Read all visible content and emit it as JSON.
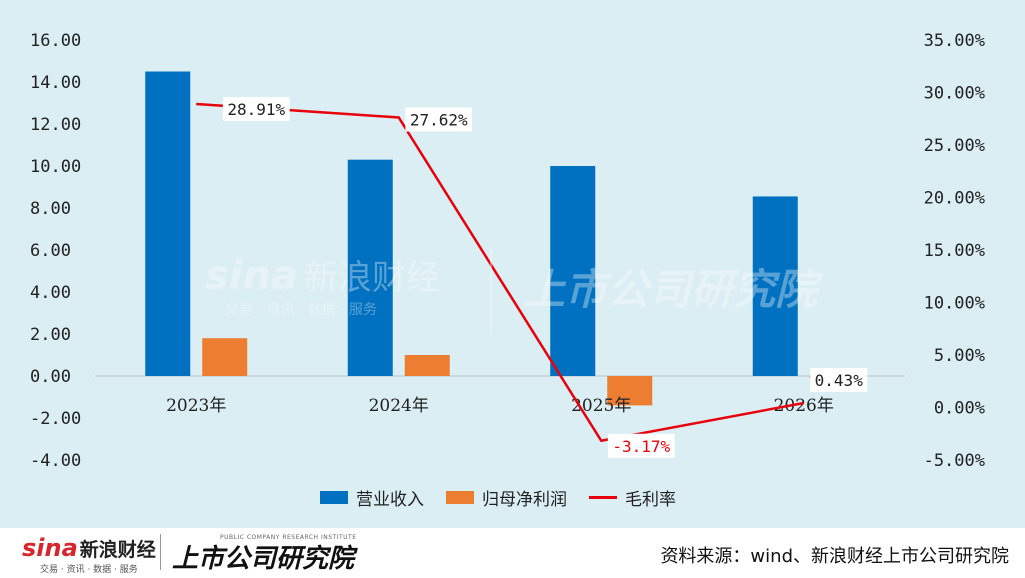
{
  "chart_data": {
    "type": "bar",
    "categories": [
      "2023年",
      "2024年",
      "2025年",
      "2026年"
    ],
    "series": [
      {
        "name": "营业收入",
        "type": "bar",
        "axis": "left",
        "color": "#0070c0",
        "values": [
          14.5,
          10.3,
          10.0,
          8.55
        ]
      },
      {
        "name": "归母净利润",
        "type": "bar",
        "axis": "left",
        "color": "#ed7d31",
        "values": [
          1.8,
          1.0,
          -1.4,
          -0.1
        ]
      },
      {
        "name": "毛利率",
        "type": "line",
        "axis": "right",
        "color": "#e8000b",
        "values": [
          28.91,
          27.62,
          -3.17,
          0.43
        ],
        "labels": [
          "28.91%",
          "27.62%",
          "-3.17%",
          "0.43%"
        ]
      }
    ],
    "y_left": {
      "min": -4,
      "max": 16,
      "step": 2,
      "tick_labels": [
        "-4.00",
        "-2.00",
        "0.00",
        "2.00",
        "4.00",
        "6.00",
        "8.00",
        "10.00",
        "12.00",
        "14.00",
        "16.00"
      ]
    },
    "y_right": {
      "min": -5,
      "max": 35,
      "step": 5,
      "tick_labels": [
        "-5.00%",
        "0.00%",
        "5.00%",
        "10.00%",
        "15.00%",
        "20.00%",
        "25.00%",
        "30.00%",
        "35.00%"
      ]
    },
    "legend_position": "bottom-center",
    "grid": false
  },
  "watermark": {
    "brand": "sina",
    "brand_cn": "新浪财经",
    "tagline": "交易 · 资讯 · 数据 · 服务",
    "institute": "上市公司研究院"
  },
  "footer": {
    "brand": "sina",
    "brand_cn": "新浪财经",
    "tagline": "交易 · 资讯 · 数据 · 服务",
    "institute_en": "PUBLIC COMPANY RESEARCH INSTITUTE",
    "institute_cn": "上市公司研究院",
    "source": "资料来源：wind、新浪财经上市公司研究院"
  }
}
